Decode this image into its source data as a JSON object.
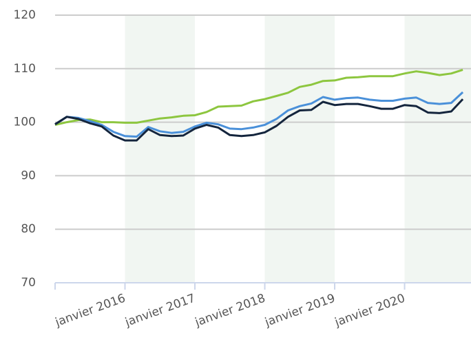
{
  "chart_data": {
    "type": "line",
    "x": [
      2015,
      2015.167,
      2015.333,
      2015.5,
      2015.667,
      2015.833,
      2016,
      2016.167,
      2016.333,
      2016.5,
      2016.667,
      2016.833,
      2017,
      2017.167,
      2017.333,
      2017.5,
      2017.667,
      2017.833,
      2018,
      2018.167,
      2018.333,
      2018.5,
      2018.667,
      2018.833,
      2019,
      2019.167,
      2019.333,
      2019.5,
      2019.667,
      2019.833,
      2020,
      2020.167,
      2020.333,
      2020.5,
      2020.667,
      2020.833
    ],
    "series": [
      {
        "color": "#8dc63f",
        "values": [
          99.5,
          100.0,
          100.4,
          100.5,
          100.0,
          100.0,
          99.9,
          99.9,
          100.3,
          100.7,
          100.9,
          101.2,
          101.3,
          101.9,
          102.9,
          103.0,
          103.1,
          103.9,
          104.3,
          104.9,
          105.5,
          106.6,
          107.0,
          107.7,
          107.8,
          108.3,
          108.4,
          108.6,
          108.6,
          108.6,
          109.1,
          109.5,
          109.2,
          108.8,
          109.1,
          109.8
        ]
      },
      {
        "color": "#4a90d9",
        "values": [
          99.6,
          101.0,
          100.8,
          100.2,
          99.5,
          98.2,
          97.4,
          97.3,
          99.1,
          98.3,
          98.0,
          98.2,
          99.2,
          99.9,
          99.6,
          98.8,
          98.7,
          99.0,
          99.5,
          100.6,
          102.2,
          103.0,
          103.5,
          104.7,
          104.2,
          104.5,
          104.6,
          104.2,
          104.0,
          104.0,
          104.4,
          104.6,
          103.6,
          103.4,
          103.6,
          105.6
        ]
      },
      {
        "color": "#14253d",
        "values": [
          99.6,
          101.0,
          100.6,
          99.8,
          99.2,
          97.5,
          96.6,
          96.6,
          98.7,
          97.6,
          97.4,
          97.5,
          98.8,
          99.5,
          99.0,
          97.6,
          97.4,
          97.6,
          98.1,
          99.3,
          101.0,
          102.2,
          102.3,
          103.8,
          103.2,
          103.4,
          103.4,
          103.0,
          102.5,
          102.5,
          103.2,
          103.0,
          101.8,
          101.7,
          102.0,
          104.3
        ]
      }
    ],
    "xlim": [
      2015,
      2020.95
    ],
    "xticks": [
      {
        "value": 2016,
        "label": "janvier 2016"
      },
      {
        "value": 2017,
        "label": "janvier 2017"
      },
      {
        "value": 2018,
        "label": "janvier 2018"
      },
      {
        "value": 2019,
        "label": "janvier 2019"
      },
      {
        "value": 2020,
        "label": "janvier 2020"
      }
    ],
    "ylim": [
      70,
      120
    ],
    "yticks": [
      70,
      80,
      90,
      100,
      110,
      120
    ],
    "grid": true,
    "band_color": "#f1f6f2"
  }
}
